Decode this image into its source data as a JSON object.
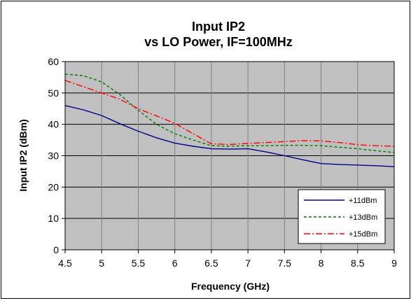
{
  "chart_data": {
    "type": "line",
    "title": "Input IP2",
    "subtitle": "vs LO Power, IF=100MHz",
    "xlabel": "Frequency (GHz)",
    "ylabel": "Input IP2 (dBm)",
    "xlim": [
      4.5,
      9
    ],
    "ylim": [
      0,
      60
    ],
    "xticks": [
      4.5,
      5,
      5.5,
      6,
      6.5,
      7,
      7.5,
      8,
      8.5,
      9
    ],
    "xtick_labels": [
      "4.5",
      "5",
      "5.5",
      "6",
      "6.5",
      "7",
      "7.5",
      "8",
      "8.5",
      "9"
    ],
    "yticks": [
      0,
      10,
      20,
      30,
      40,
      50,
      60
    ],
    "ytick_labels": [
      "0",
      "10",
      "20",
      "30",
      "40",
      "50",
      "60"
    ],
    "grid": true,
    "legend_position": "bottom-right",
    "plot_background": "#c0c0c0",
    "series": [
      {
        "name": "+11dBm",
        "color": "#00008b",
        "dash": "solid",
        "x": [
          4.5,
          4.75,
          5,
          5.25,
          5.5,
          5.75,
          6,
          6.25,
          6.5,
          6.75,
          7,
          7.25,
          7.5,
          7.75,
          8,
          8.25,
          8.5,
          8.75,
          9
        ],
        "y": [
          46,
          44.6,
          42.8,
          40.2,
          37.8,
          35.7,
          34,
          33,
          32.2,
          32.1,
          32.2,
          31.2,
          30,
          28.7,
          27.5,
          27.2,
          27,
          26.8,
          26.5
        ]
      },
      {
        "name": "+13dBm",
        "color": "#007a00",
        "dash": "dashed",
        "x": [
          4.5,
          4.75,
          5,
          5.25,
          5.5,
          5.75,
          6,
          6.25,
          6.5,
          6.75,
          7,
          7.25,
          7.5,
          7.75,
          8,
          8.25,
          8.5,
          8.75,
          9
        ],
        "y": [
          56,
          55.5,
          53.5,
          49.5,
          44.5,
          40,
          37,
          35,
          33.2,
          33,
          33.2,
          33.2,
          33.3,
          33.3,
          33.2,
          32.7,
          32.2,
          31.6,
          31
        ]
      },
      {
        "name": "+15dBm",
        "color": "#ff0000",
        "dash": "dashdot",
        "x": [
          4.5,
          4.75,
          5,
          5.25,
          5.5,
          5.75,
          6,
          6.25,
          6.5,
          6.75,
          7,
          7.25,
          7.5,
          7.75,
          8,
          8.25,
          8.5,
          8.75,
          9
        ],
        "y": [
          54,
          52,
          50,
          48,
          45,
          42.7,
          40.3,
          37,
          33.8,
          33.6,
          33.9,
          34.2,
          34.5,
          34.8,
          34.7,
          34.2,
          33.5,
          33.2,
          33
        ]
      }
    ]
  }
}
